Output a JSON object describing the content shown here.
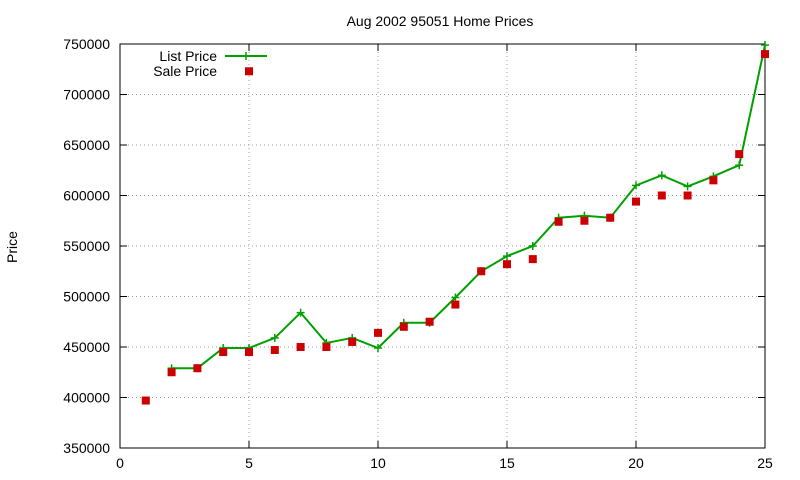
{
  "chart_data": {
    "type": "line",
    "title": "Aug 2002 95051 Home Prices",
    "xlabel": "",
    "ylabel": "Price",
    "xlim": [
      0,
      25
    ],
    "ylim": [
      350000,
      750000
    ],
    "xticks": [
      0,
      5,
      10,
      15,
      20,
      25
    ],
    "yticks": [
      350000,
      400000,
      450000,
      500000,
      550000,
      600000,
      650000,
      700000,
      750000
    ],
    "grid": true,
    "legend_position": "top-left",
    "series": [
      {
        "name": "List Price",
        "style": "line with plus markers",
        "color": "#00a000",
        "points": [
          [
            2,
            429000
          ],
          [
            3,
            429000
          ],
          [
            4,
            449000
          ],
          [
            5,
            449000
          ],
          [
            6,
            459000
          ],
          [
            7,
            484000
          ],
          [
            8,
            454000
          ],
          [
            9,
            459000
          ],
          [
            10,
            449000
          ],
          [
            11,
            474000
          ],
          [
            12,
            474000
          ],
          [
            13,
            499000
          ],
          [
            14,
            525000
          ],
          [
            15,
            540000
          ],
          [
            16,
            550000
          ],
          [
            17,
            578000
          ],
          [
            18,
            580000
          ],
          [
            19,
            578000
          ],
          [
            20,
            610000
          ],
          [
            21,
            620000
          ],
          [
            22,
            609000
          ],
          [
            23,
            619000
          ],
          [
            24,
            630000
          ],
          [
            25,
            749000
          ]
        ]
      },
      {
        "name": "Sale Price",
        "style": "square markers",
        "color": "#cc0000",
        "points": [
          [
            1,
            397000
          ],
          [
            2,
            425000
          ],
          [
            3,
            429000
          ],
          [
            4,
            445000
          ],
          [
            5,
            445000
          ],
          [
            6,
            447000
          ],
          [
            7,
            450000
          ],
          [
            8,
            450000
          ],
          [
            9,
            455000
          ],
          [
            10,
            464000
          ],
          [
            11,
            470000
          ],
          [
            12,
            475000
          ],
          [
            13,
            492000
          ],
          [
            14,
            525000
          ],
          [
            15,
            532000
          ],
          [
            16,
            537000
          ],
          [
            17,
            574000
          ],
          [
            18,
            575000
          ],
          [
            19,
            578000
          ],
          [
            20,
            594000
          ],
          [
            21,
            600000
          ],
          [
            22,
            600000
          ],
          [
            23,
            615000
          ],
          [
            24,
            641000
          ],
          [
            25,
            740000
          ]
        ]
      }
    ],
    "legend_extra_sale_marker": [
      5,
      723000
    ]
  }
}
